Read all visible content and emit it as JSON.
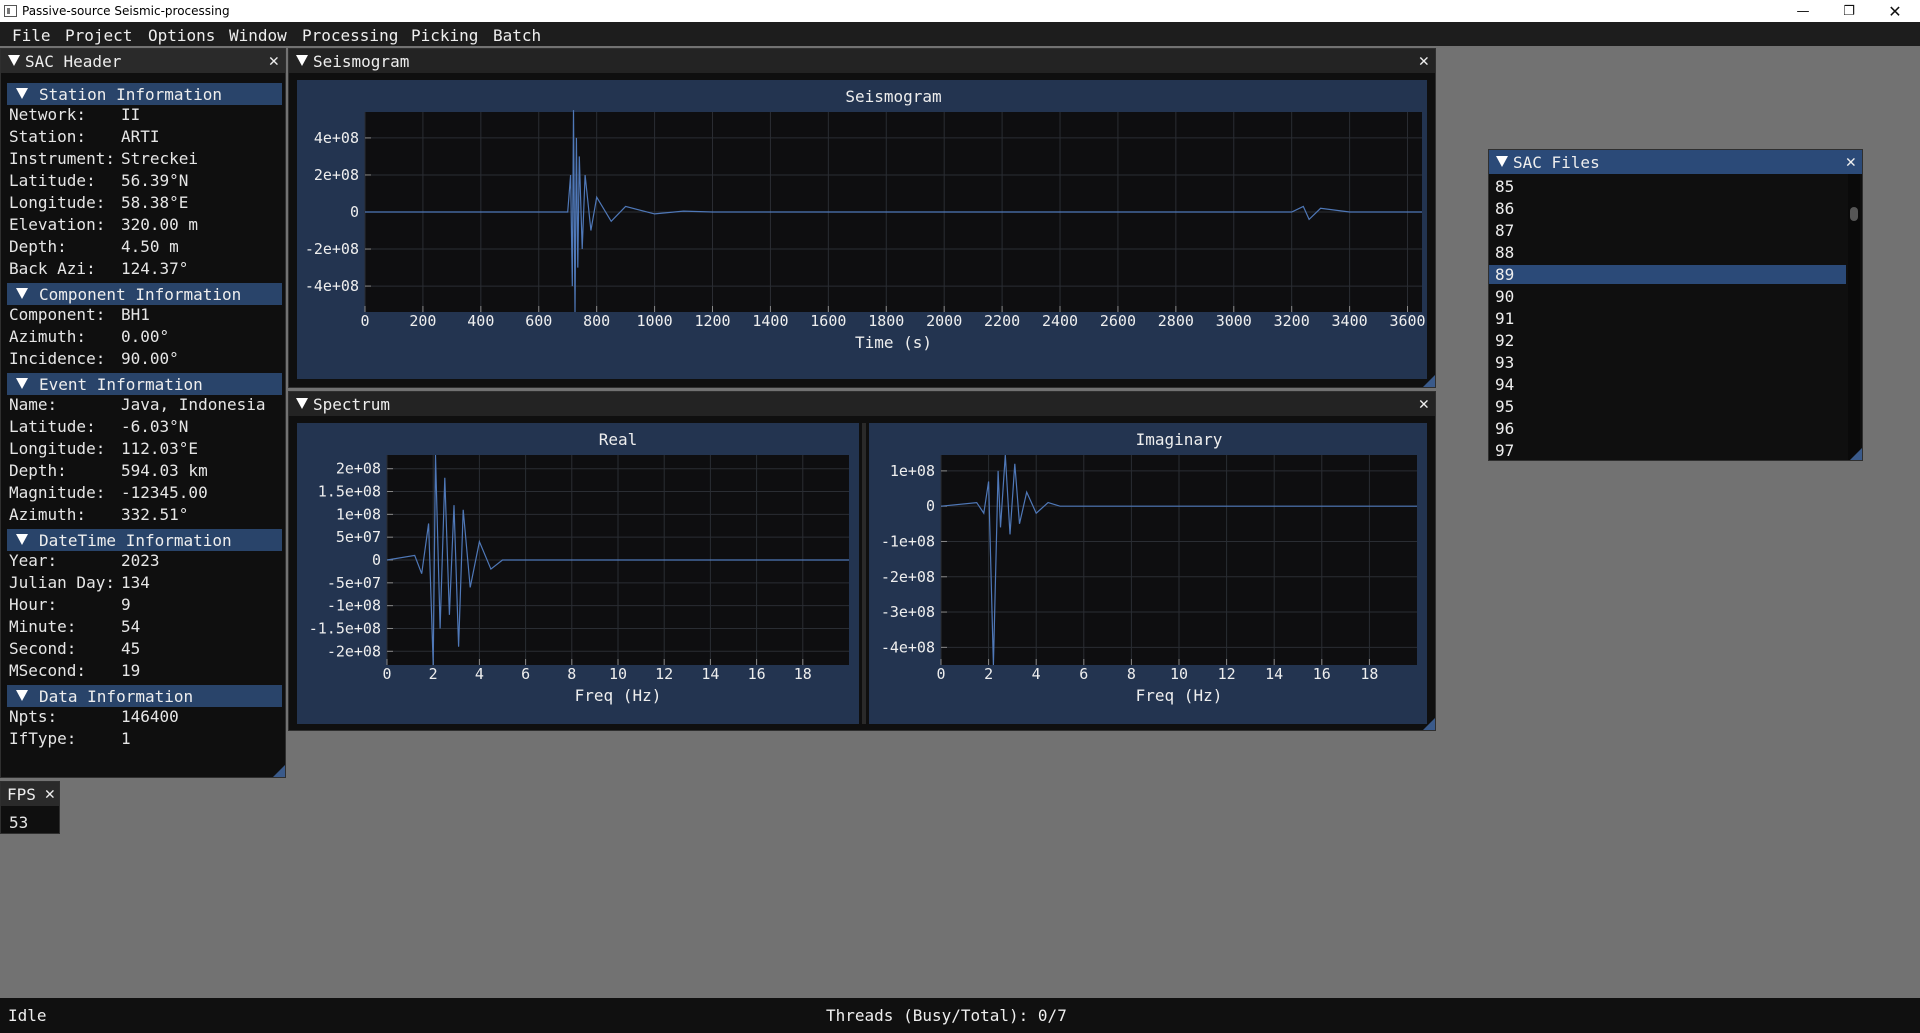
{
  "window": {
    "title": "Passive-source Seismic-processing"
  },
  "menu": [
    "File",
    "Project",
    "Options",
    "Window",
    "Processing",
    "Picking",
    "Batch"
  ],
  "sac_header": {
    "title": "SAC Header",
    "sections": [
      {
        "title": "Station Information",
        "rows": [
          {
            "label": "Network:",
            "value": "II"
          },
          {
            "label": "Station:",
            "value": "ARTI"
          },
          {
            "label": "Instrument:",
            "value": "Streckei"
          },
          {
            "label": "Latitude:",
            "value": "56.39°N"
          },
          {
            "label": "Longitude:",
            "value": "58.38°E"
          },
          {
            "label": "Elevation:",
            "value": "320.00 m"
          },
          {
            "label": "Depth:",
            "value": "4.50 m"
          },
          {
            "label": "Back Azi:",
            "value": "124.37°"
          }
        ]
      },
      {
        "title": "Component Information",
        "rows": [
          {
            "label": "Component:",
            "value": "BH1"
          },
          {
            "label": "Azimuth:",
            "value": "0.00°"
          },
          {
            "label": "Incidence:",
            "value": "90.00°"
          }
        ]
      },
      {
        "title": "Event Information",
        "rows": [
          {
            "label": "Name:",
            "value": "Java, Indonesia"
          },
          {
            "label": "Latitude:",
            "value": "-6.03°N"
          },
          {
            "label": "Longitude:",
            "value": "112.03°E"
          },
          {
            "label": "Depth:",
            "value": "594.03 km"
          },
          {
            "label": "Magnitude:",
            "value": "-12345.00"
          },
          {
            "label": "Azimuth:",
            "value": "332.51°"
          }
        ]
      },
      {
        "title": "DateTime Information",
        "rows": [
          {
            "label": "Year:",
            "value": "2023"
          },
          {
            "label": "Julian Day:",
            "value": "134"
          },
          {
            "label": "Hour:",
            "value": "9"
          },
          {
            "label": "Minute:",
            "value": "54"
          },
          {
            "label": "Second:",
            "value": "45"
          },
          {
            "label": "MSecond:",
            "value": "19"
          }
        ]
      },
      {
        "title": "Data Information",
        "rows": [
          {
            "label": "Npts:",
            "value": "146400"
          },
          {
            "label": "IfType:",
            "value": "1"
          }
        ]
      }
    ]
  },
  "fps": {
    "title": "FPS",
    "value": "53"
  },
  "seismogram_window": {
    "title": "Seismogram"
  },
  "spectrum_window": {
    "title": "Spectrum"
  },
  "sac_files": {
    "title": "SAC Files",
    "items": [
      "85",
      "86",
      "87",
      "88",
      "89",
      "90",
      "91",
      "92",
      "93",
      "94",
      "95",
      "96",
      "97"
    ],
    "selected": "89"
  },
  "status": {
    "left": "Idle",
    "threads": "Threads (Busy/Total): 0/7"
  },
  "colors": {
    "accent": "#2b4a78",
    "trace": "#4f78b8",
    "plot_bg": "#233450",
    "selected": "#2b4a78"
  },
  "chart_data": [
    {
      "type": "line",
      "title": "Seismogram",
      "xlabel": "Time (s)",
      "ylabel": "",
      "xlim": [
        0,
        3650
      ],
      "ylim": [
        -540000000.0,
        540000000.0
      ],
      "xticks": [
        "0",
        "200",
        "400",
        "600",
        "800",
        "1000",
        "1200",
        "1400",
        "1600",
        "1800",
        "2000",
        "2200",
        "2400",
        "2600",
        "2800",
        "3000",
        "3200",
        "3400",
        "3600"
      ],
      "yticks": [
        "4e+08",
        "2e+08",
        "0",
        "-2e+08",
        "-4e+08"
      ],
      "ytick_values": [
        400000000.0,
        200000000.0,
        0,
        -200000000.0,
        -400000000.0
      ],
      "series": [
        {
          "x": [
            0,
            600,
            700,
            710,
            716,
            720,
            725,
            730,
            735,
            740,
            750,
            760,
            780,
            800,
            850,
            900,
            1000,
            1100,
            1200,
            1400,
            3200,
            3240,
            3260,
            3300,
            3400,
            3650
          ],
          "y": [
            0,
            0,
            0,
            200000000.0,
            -400000000.0,
            550000000.0,
            -540000000.0,
            400000000.0,
            -300000000.0,
            300000000.0,
            -200000000.0,
            200000000.0,
            -100000000.0,
            80000000.0,
            -50000000.0,
            30000000.0,
            -10000000.0,
            5000000.0,
            0,
            0,
            0,
            30000000.0,
            -40000000.0,
            20000000.0,
            0,
            0
          ]
        }
      ]
    },
    {
      "type": "line",
      "title": "Real",
      "xlabel": "Freq (Hz)",
      "ylabel": "",
      "xlim": [
        0,
        20
      ],
      "ylim": [
        -230000000.0,
        230000000.0
      ],
      "xticks": [
        "0",
        "2",
        "4",
        "6",
        "8",
        "10",
        "12",
        "14",
        "16",
        "18"
      ],
      "yticks": [
        "2e+08",
        "1.5e+08",
        "1e+08",
        "5e+07",
        "0",
        "-5e+07",
        "-1e+08",
        "-1.5e+08",
        "-2e+08"
      ],
      "ytick_values": [
        200000000.0,
        150000000.0,
        100000000.0,
        50000000.0,
        0,
        -50000000.0,
        -100000000.0,
        -150000000.0,
        -200000000.0
      ],
      "series": [
        {
          "x": [
            0,
            1.2,
            1.5,
            1.8,
            2.0,
            2.1,
            2.3,
            2.5,
            2.7,
            2.9,
            3.1,
            3.3,
            3.6,
            4.0,
            4.5,
            5.0,
            20
          ],
          "y": [
            0,
            10000000.0,
            -30000000.0,
            80000000.0,
            -230000000.0,
            230000000.0,
            -150000000.0,
            180000000.0,
            -120000000.0,
            120000000.0,
            -190000000.0,
            110000000.0,
            -60000000.0,
            40000000.0,
            -20000000.0,
            0,
            0
          ]
        }
      ]
    },
    {
      "type": "line",
      "title": "Imaginary",
      "xlabel": "Freq (Hz)",
      "ylabel": "",
      "xlim": [
        0,
        20
      ],
      "ylim": [
        -450000000.0,
        145000000.0
      ],
      "xticks": [
        "0",
        "2",
        "4",
        "6",
        "8",
        "10",
        "12",
        "14",
        "16",
        "18"
      ],
      "yticks": [
        "1e+08",
        "0",
        "-1e+08",
        "-2e+08",
        "-3e+08",
        "-4e+08"
      ],
      "ytick_values": [
        100000000.0,
        0,
        -100000000.0,
        -200000000.0,
        -300000000.0,
        -400000000.0
      ],
      "series": [
        {
          "x": [
            0,
            1.5,
            1.8,
            2.0,
            2.2,
            2.4,
            2.5,
            2.7,
            2.9,
            3.1,
            3.3,
            3.6,
            4.0,
            4.5,
            5.0,
            20
          ],
          "y": [
            0,
            10000000.0,
            -20000000.0,
            70000000.0,
            -450000000.0,
            100000000.0,
            -60000000.0,
            145000000.0,
            -80000000.0,
            120000000.0,
            -50000000.0,
            40000000.0,
            -20000000.0,
            10000000.0,
            0,
            0
          ]
        }
      ]
    }
  ]
}
